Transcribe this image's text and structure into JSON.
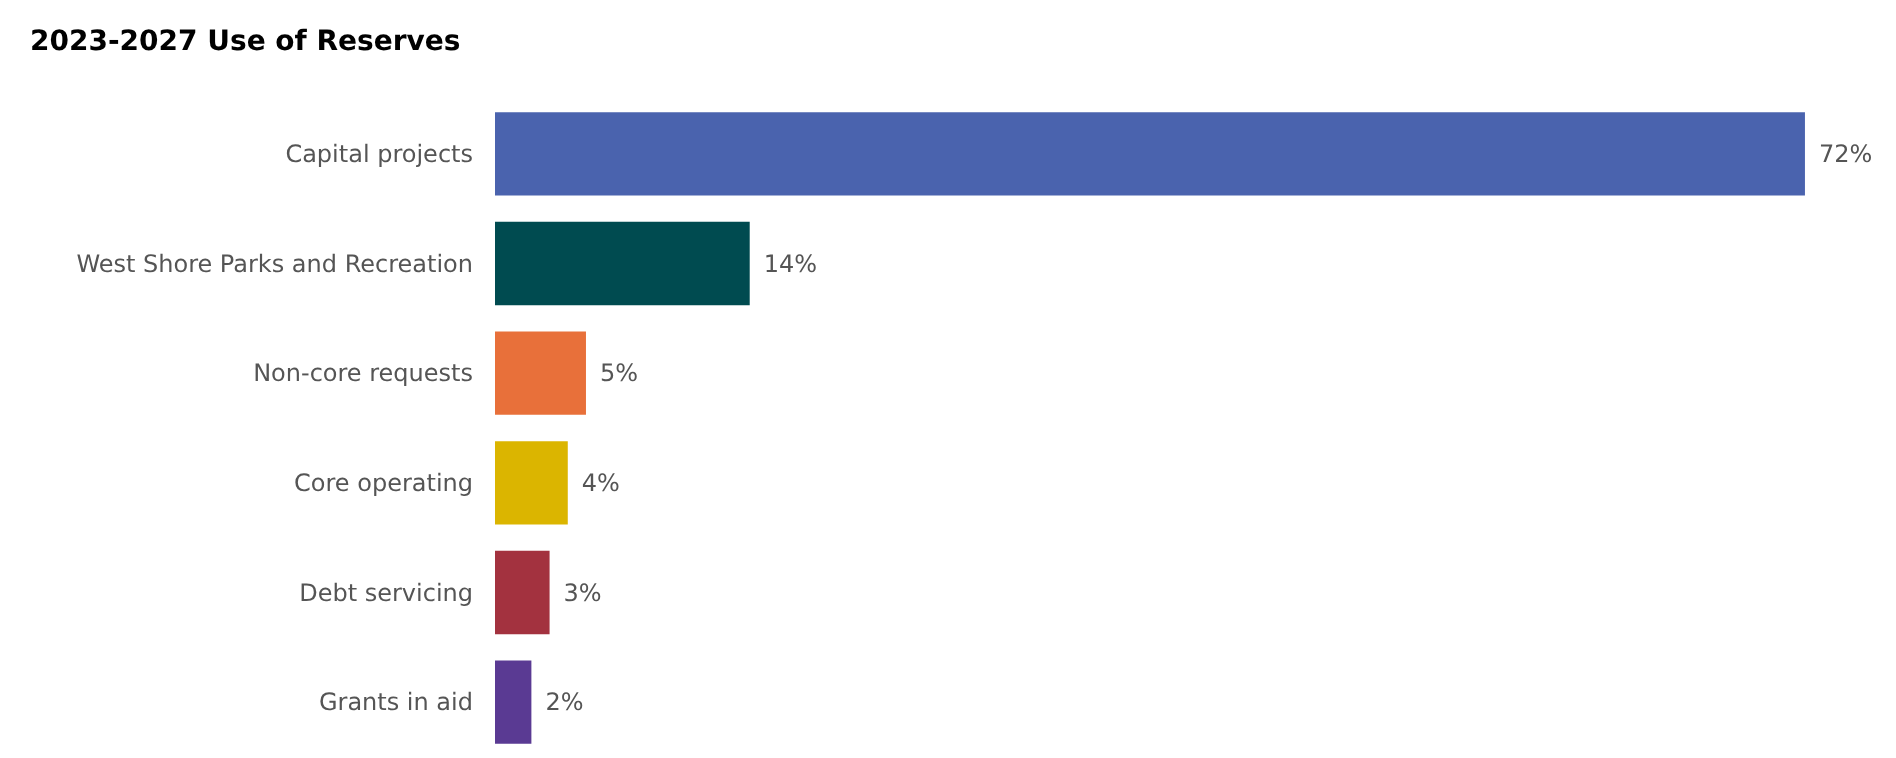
{
  "chart_data": {
    "type": "bar",
    "orientation": "horizontal",
    "title": "2023-2027 Use of Reserves",
    "categories": [
      "Capital projects",
      "West Shore Parks and Recreation",
      "Non-core requests",
      "Core operating",
      "Debt servicing",
      "Grants in aid"
    ],
    "values": [
      72,
      14,
      5,
      4,
      3,
      2
    ],
    "colors": [
      "#4a63ae",
      "#004b50",
      "#e8703a",
      "#dbb500",
      "#a3323f",
      "#5a3a93"
    ],
    "value_labels": [
      "72%",
      "14%",
      "5%",
      "4%",
      "3%",
      "2%"
    ],
    "grid": false
  }
}
